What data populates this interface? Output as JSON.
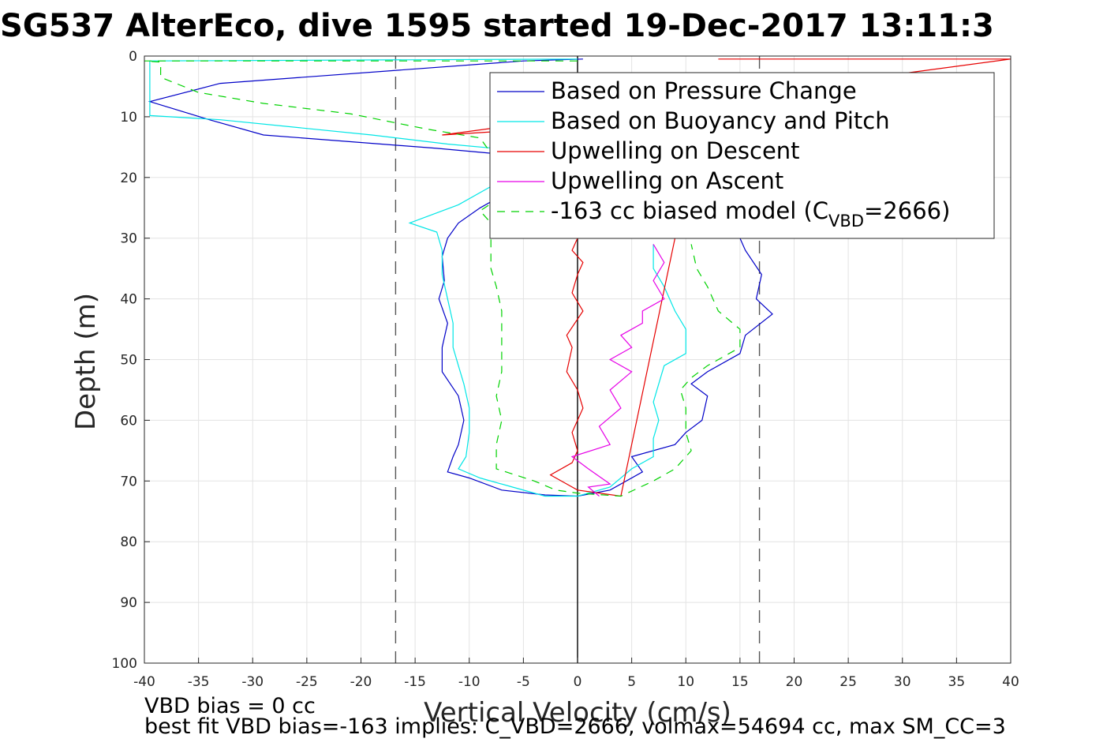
{
  "chart_data": {
    "type": "line",
    "title": "SG537 AlterEco, dive 1595 started 19-Dec-2017 13:11:3",
    "xlabel": "Vertical Velocity (cm/s)",
    "ylabel": "Depth (m)",
    "xlim": [
      -40,
      40
    ],
    "ylim": [
      0,
      100
    ],
    "y_reversed": true,
    "grid": true,
    "x_ticks": [
      -40,
      -35,
      -30,
      -25,
      -20,
      -15,
      -10,
      -5,
      0,
      5,
      10,
      15,
      20,
      25,
      30,
      35,
      40
    ],
    "y_ticks": [
      0,
      10,
      20,
      30,
      40,
      50,
      60,
      70,
      80,
      90,
      100
    ],
    "x_tick_labels": [
      "-40",
      "-35",
      "-30",
      "-25",
      "-20",
      "-15",
      "-10",
      "-5",
      "0",
      "5",
      "10",
      "15",
      "20",
      "25",
      "30",
      "35",
      "40"
    ],
    "y_tick_labels": [
      "0",
      "10",
      "20",
      "30",
      "40",
      "50",
      "60",
      "70",
      "80",
      "90",
      "100"
    ],
    "legend_placement": "top-right",
    "reference_lines": [
      {
        "x": -16.8,
        "style": "dashed",
        "color": "#555555"
      },
      {
        "x": 16.8,
        "style": "dashed",
        "color": "#555555"
      },
      {
        "x": 0,
        "style": "solid",
        "color": "#000000"
      }
    ],
    "series": [
      {
        "name": "Based on Pressure Change",
        "color": "#0000c8",
        "dash": "",
        "points": [
          [
            0.5,
            0.5
          ],
          [
            -5,
            0.8
          ],
          [
            -33,
            4.5
          ],
          [
            -39.5,
            7.5
          ],
          [
            -34,
            10.5
          ],
          [
            -29,
            13
          ],
          [
            -13,
            15.2
          ],
          [
            -5,
            16.5
          ],
          [
            -3,
            20
          ],
          [
            -7,
            23
          ],
          [
            -9,
            25
          ],
          [
            -11,
            27.5
          ],
          [
            -12,
            30
          ],
          [
            -12.5,
            33
          ],
          [
            -12.3,
            37
          ],
          [
            -12.8,
            40
          ],
          [
            -12,
            44
          ],
          [
            -12.5,
            48
          ],
          [
            -12.5,
            52
          ],
          [
            -11,
            56
          ],
          [
            -10.5,
            60
          ],
          [
            -11,
            64
          ],
          [
            -11.5,
            66
          ],
          [
            -12,
            68.5
          ],
          [
            -10,
            69.5
          ],
          [
            -7,
            71.5
          ],
          [
            -3,
            72.3
          ],
          [
            0,
            72.5
          ],
          [
            3,
            71.5
          ],
          [
            6,
            68.5
          ],
          [
            5,
            66
          ],
          [
            9,
            64
          ],
          [
            10,
            62
          ],
          [
            11.5,
            60
          ],
          [
            12,
            56
          ],
          [
            10.5,
            54
          ],
          [
            12,
            52
          ],
          [
            15,
            49
          ],
          [
            15.5,
            46
          ],
          [
            18,
            42.5
          ],
          [
            16.5,
            40
          ],
          [
            17,
            36
          ],
          [
            15.5,
            32
          ],
          [
            15,
            30
          ]
        ]
      },
      {
        "name": "Based on Buoyancy and Pitch",
        "color": "#00e6e6",
        "dash": "",
        "points": [
          [
            0,
            0.5
          ],
          [
            -39.5,
            0.8
          ],
          [
            -39.5,
            9.8
          ],
          [
            -33,
            10.5
          ],
          [
            -19,
            13
          ],
          [
            -12,
            14.5
          ],
          [
            -7,
            15.3
          ],
          [
            -4,
            16.3
          ],
          [
            -8,
            21.5
          ],
          [
            -11,
            24.5
          ],
          [
            -15.5,
            27.5
          ],
          [
            -13,
            29
          ],
          [
            -12.5,
            32
          ],
          [
            -12.5,
            36
          ],
          [
            -12,
            40
          ],
          [
            -11.5,
            44
          ],
          [
            -11.5,
            48
          ],
          [
            -11,
            51
          ],
          [
            -10.5,
            54
          ],
          [
            -10,
            58
          ],
          [
            -10,
            62
          ],
          [
            -10.3,
            66
          ],
          [
            -11,
            68
          ],
          [
            -9,
            69.5
          ],
          [
            -6,
            71
          ],
          [
            -3,
            72.5
          ],
          [
            0,
            72.5
          ],
          [
            3,
            71
          ],
          [
            5,
            68
          ],
          [
            7,
            66
          ],
          [
            7,
            63
          ],
          [
            7.5,
            60
          ],
          [
            7,
            57
          ],
          [
            7.5,
            54
          ],
          [
            8,
            51
          ],
          [
            10,
            49
          ],
          [
            10,
            45
          ],
          [
            9,
            42
          ],
          [
            8,
            38
          ],
          [
            7,
            35
          ],
          [
            7,
            31
          ]
        ]
      },
      {
        "name": "Upwelling on Descent",
        "color": "#e60000",
        "dash": "",
        "points": [
          [
            13,
            0.5
          ],
          [
            40,
            0.5
          ],
          [
            -12.5,
            13
          ],
          [
            -8,
            12.5
          ],
          [
            -1,
            14
          ],
          [
            0,
            30
          ],
          [
            -0.5,
            32
          ],
          [
            0.5,
            34
          ],
          [
            0,
            36
          ],
          [
            -0.5,
            39
          ],
          [
            0.5,
            42
          ],
          [
            -1,
            46
          ],
          [
            -0.5,
            48
          ],
          [
            -1,
            52
          ],
          [
            0,
            55
          ],
          [
            0.5,
            58
          ],
          [
            -0.5,
            62
          ],
          [
            0,
            65
          ],
          [
            -0.5,
            67
          ],
          [
            -2.5,
            69
          ],
          [
            -1,
            70.5
          ],
          [
            0,
            71.5
          ],
          [
            4,
            72.5
          ],
          [
            9,
            30
          ]
        ]
      },
      {
        "name": "Upwelling on Ascent",
        "color": "#e600e6",
        "dash": "",
        "points": [
          [
            2,
            72.5
          ],
          [
            1,
            71
          ],
          [
            3,
            70.5
          ],
          [
            1,
            68
          ],
          [
            -0.5,
            66
          ],
          [
            3,
            64
          ],
          [
            2,
            61
          ],
          [
            4,
            58
          ],
          [
            3,
            55
          ],
          [
            5,
            52
          ],
          [
            3,
            50
          ],
          [
            5,
            48
          ],
          [
            4,
            46
          ],
          [
            6,
            44
          ],
          [
            6,
            42
          ],
          [
            8,
            40
          ],
          [
            7,
            37
          ],
          [
            8,
            34
          ],
          [
            7,
            31
          ]
        ]
      },
      {
        "name": "-163 cc biased model (C_VBD=2666)",
        "color": "#00d200",
        "dash": "10,8",
        "points": [
          [
            0,
            0.8
          ],
          [
            -40,
            0.8
          ],
          [
            -38.5,
            1
          ],
          [
            -38.5,
            3.5
          ],
          [
            -35,
            6
          ],
          [
            -29,
            7.8
          ],
          [
            -21,
            9.5
          ],
          [
            -14,
            12
          ],
          [
            -9,
            13.5
          ],
          [
            -8,
            16
          ],
          [
            -6,
            22
          ],
          [
            -9,
            25.5
          ],
          [
            -8,
            27.5
          ],
          [
            -8,
            31
          ],
          [
            -8,
            35
          ],
          [
            -7.5,
            38
          ],
          [
            -7,
            42
          ],
          [
            -7,
            47
          ],
          [
            -7,
            52
          ],
          [
            -7.5,
            56
          ],
          [
            -7,
            60
          ],
          [
            -7.5,
            64
          ],
          [
            -7.5,
            68
          ],
          [
            -4,
            70
          ],
          [
            -2,
            71.5
          ],
          [
            0,
            72
          ],
          [
            4,
            72.5
          ],
          [
            7,
            70
          ],
          [
            9,
            68
          ],
          [
            10.5,
            65
          ],
          [
            10,
            62
          ],
          [
            10,
            58
          ],
          [
            9.5,
            55
          ],
          [
            10.5,
            53
          ],
          [
            12,
            51
          ],
          [
            15,
            48
          ],
          [
            15,
            45
          ],
          [
            13,
            42
          ],
          [
            12,
            38
          ],
          [
            11,
            35
          ],
          [
            10.5,
            31
          ]
        ]
      }
    ],
    "annotations": [
      "VBD bias = 0 cc",
      "best fit VBD bias=-163 implies: C_VBD=2666, volmax=54694 cc, max SM_CC=3"
    ],
    "legend": {
      "entries": [
        "Based on Pressure Change",
        "Based on Buoyancy and Pitch",
        "Upwelling on Descent",
        "Upwelling on Ascent"
      ],
      "last_entry_prefix": "-163 cc biased model (C",
      "last_entry_sub": "VBD",
      "last_entry_suffix": "=2666)"
    }
  }
}
